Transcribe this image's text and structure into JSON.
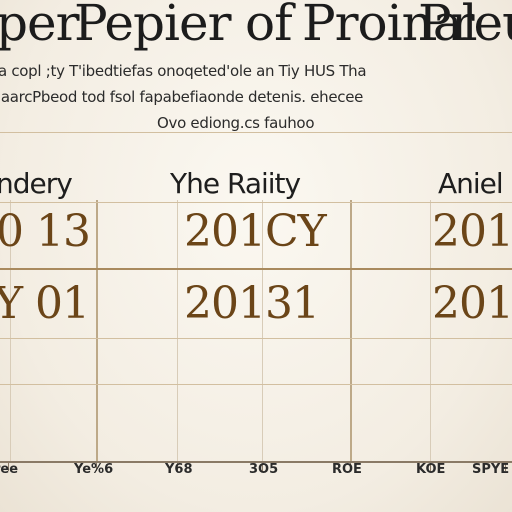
{
  "title": {
    "part1": "per",
    "part2": "Pepier",
    "part3": "of",
    "part4": "Proinal",
    "part5": "Preut"
  },
  "subtitle_lines": [
    "a copl ;ty T'ibedtiefas onoqeted'ole an Tiy HUS Tha",
    "aaarcPbeod tod fsol fapabefiaonde detenis. ehecee",
    "Ovo ediong.cs fauhoo"
  ],
  "columns": [
    {
      "header": "ndery",
      "row1": "0 13",
      "row2": "Y 01"
    },
    {
      "header": "Yhe Raiity",
      "row1": "201CY",
      "row2": "20131"
    },
    {
      "header": "Aniel",
      "row1": "201",
      "row2": "201"
    }
  ],
  "tick_labels": [
    "ree",
    "Ye%6",
    "Y68",
    "3O5",
    "ROE",
    "KOE",
    "SPYE"
  ],
  "colors": {
    "year_text": "#6b4518",
    "rule": "#a98a5e",
    "background": "#f6f1e7"
  }
}
